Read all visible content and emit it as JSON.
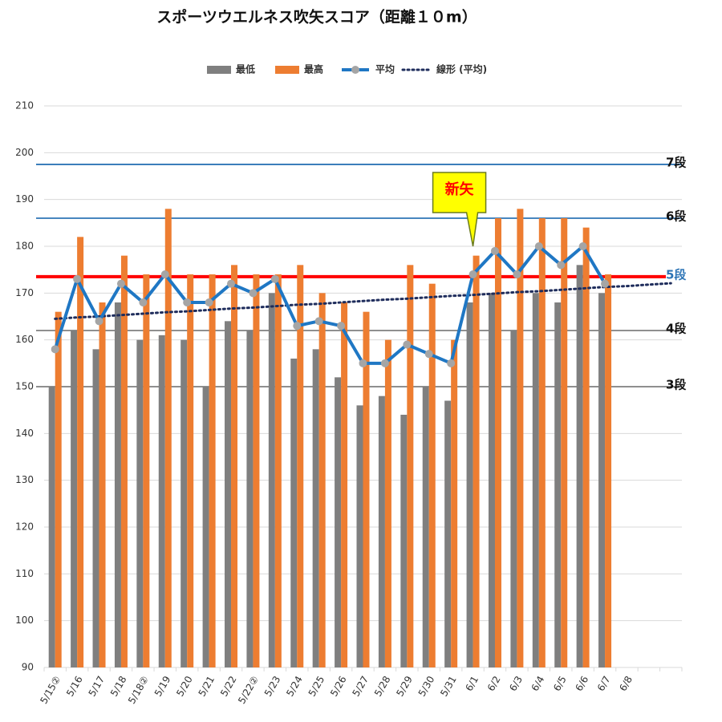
{
  "chart_data": {
    "type": "bar",
    "title": "スポーツウエルネス吹矢スコア（距離１０m）",
    "categories": [
      "5/15②",
      "5/16",
      "5/17",
      "5/18",
      "5/18②",
      "5/19",
      "5/20",
      "5/21",
      "5/22",
      "5/22②",
      "5/23",
      "5/24",
      "5/25",
      "5/26",
      "5/27",
      "5/28",
      "5/29",
      "5/30",
      "5/31",
      "6/1",
      "6/2",
      "6/3",
      "6/4",
      "6/5",
      "6/6",
      "6/7",
      "6/8",
      null,
      null
    ],
    "series": [
      {
        "name": "最低",
        "kind": "bar",
        "color": "#7f7f7f",
        "values": [
          150,
          162,
          158,
          168,
          160,
          161,
          160,
          150,
          164,
          162,
          170,
          156,
          158,
          152,
          146,
          148,
          144,
          150,
          147,
          168,
          170,
          162,
          170,
          168,
          176,
          170,
          null,
          null,
          null
        ]
      },
      {
        "name": "最高",
        "kind": "bar",
        "color": "#ed7d31",
        "values": [
          166,
          182,
          168,
          178,
          174,
          188,
          174,
          174,
          176,
          174,
          174,
          176,
          170,
          168,
          166,
          160,
          176,
          172,
          160,
          178,
          186,
          188,
          186,
          186,
          184,
          174,
          null,
          null,
          null
        ]
      },
      {
        "name": "平均",
        "kind": "line",
        "color": "#1f77c4",
        "marker_color": "#a5a5a5",
        "values": [
          158,
          173,
          164,
          172,
          168,
          174,
          168,
          168,
          172,
          170,
          173,
          163,
          164,
          163,
          155,
          155,
          159,
          157,
          155,
          174,
          179,
          174,
          180,
          176,
          180,
          172,
          null,
          null,
          null
        ]
      },
      {
        "name": "線形 (平均)",
        "kind": "dotted",
        "color": "#1f2d5c",
        "values": [
          164.5,
          164.8,
          165.0,
          165.3,
          165.6,
          165.9,
          166.1,
          166.4,
          166.7,
          166.9,
          167.2,
          167.5,
          167.7,
          168.0,
          168.3,
          168.6,
          168.8,
          169.1,
          169.4,
          169.6,
          169.9,
          170.2,
          170.4,
          170.7,
          171.0,
          171.3,
          171.5,
          171.8,
          172.1
        ]
      }
    ],
    "ylim": [
      90,
      210
    ],
    "yticks": [
      90,
      100,
      110,
      120,
      130,
      140,
      150,
      160,
      170,
      180,
      190,
      200,
      210
    ],
    "grid": true,
    "legend": "top",
    "reference_lines": [
      {
        "label": "7段",
        "value": 197.5,
        "color": "#2e75b6"
      },
      {
        "label": "6段",
        "value": 186,
        "color": "#2e75b6"
      },
      {
        "label": "5段",
        "value": 173.5,
        "color": "#ff0000",
        "label_color": "#2e75b6"
      },
      {
        "label": "4段",
        "value": 162,
        "color": "#7f7f7f"
      },
      {
        "label": "3段",
        "value": 150,
        "color": "#7f7f7f"
      }
    ],
    "annotations": [
      {
        "text": "新矢",
        "x": "6/1",
        "y": 180,
        "color": "#ff0000",
        "background": "#ffff00"
      }
    ]
  }
}
